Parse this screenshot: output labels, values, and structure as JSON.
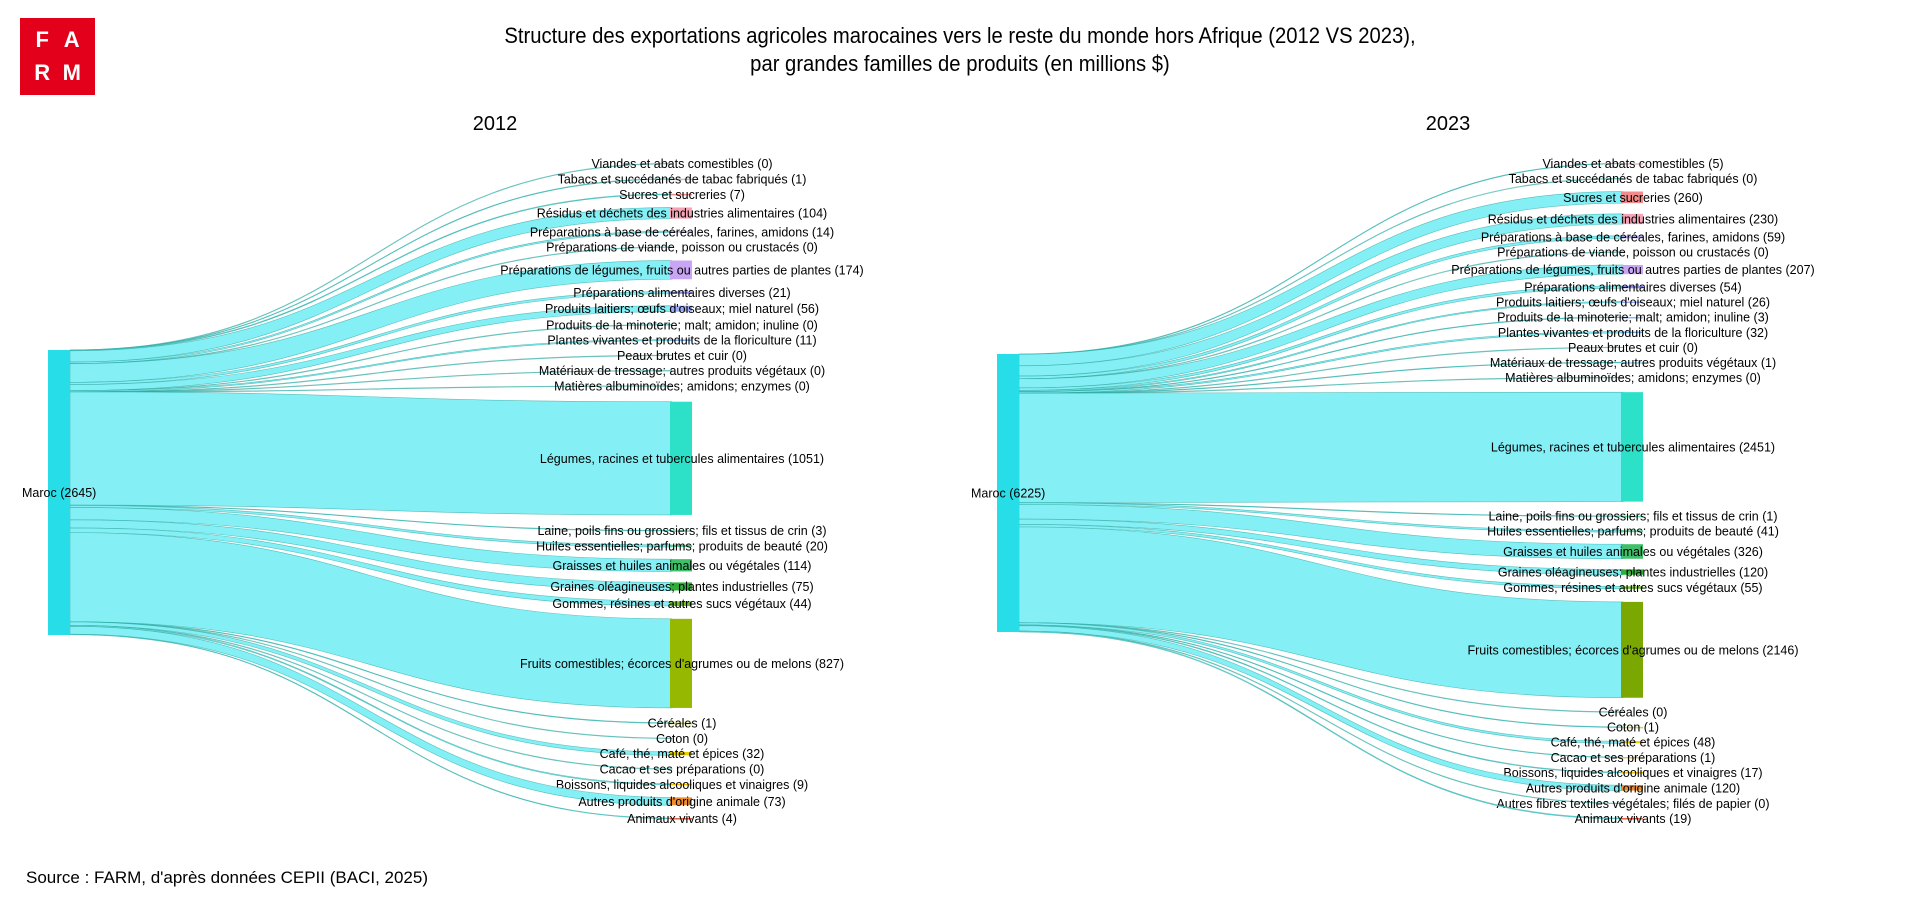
{
  "logo": {
    "letters": [
      "F",
      "A",
      "R",
      "M"
    ]
  },
  "title": {
    "line1": "Structure des exportations agricoles marocaines vers le reste du monde hors Afrique (2012 VS 2023),",
    "line2": "par grandes familles de produits (en millions $)"
  },
  "source": "Source : FARM, d'après données CEPII (BACI, 2025)",
  "colors": {
    "link": "#7eeef5",
    "link_edge": "#2aa8a0",
    "source_node": "#27dde8"
  },
  "chart_data": [
    {
      "type": "sankey",
      "title": "2012",
      "source_label": "Maroc (2645)",
      "source_value": 2645,
      "flows": [
        {
          "label": "Viandes et abats comestibles (0)",
          "value": 0,
          "color": "#bfbfbf"
        },
        {
          "label": "Tabacs et succédanés de tabac fabriqués (1)",
          "value": 1,
          "color": "#bfbfbf"
        },
        {
          "label": "Sucres et sucreries (7)",
          "value": 7,
          "color": "#f28b8b"
        },
        {
          "label": "Résidus et déchets des industries alimentaires (104)",
          "value": 104,
          "color": "#f5a3b5"
        },
        {
          "label": "Préparations à base de céréales, farines, amidons (14)",
          "value": 14,
          "color": "#b3a6f0"
        },
        {
          "label": "Préparations de viande, poisson ou crustacés (0)",
          "value": 0,
          "color": "#bfbfbf"
        },
        {
          "label": "Préparations de légumes, fruits ou autres parties de plantes (174)",
          "value": 174,
          "color": "#c9a6f5"
        },
        {
          "label": "Préparations alimentaires diverses (21)",
          "value": 21,
          "color": "#8a8af0"
        },
        {
          "label": "Produits laitiers; œufs d'oiseaux; miel naturel (56)",
          "value": 56,
          "color": "#9aaaf5"
        },
        {
          "label": "Produits de la minoterie; malt; amidon; inuline (0)",
          "value": 0,
          "color": "#bfbfbf"
        },
        {
          "label": "Plantes vivantes et produits de la floriculture (11)",
          "value": 11,
          "color": "#6fb0f0"
        },
        {
          "label": "Peaux brutes et cuir (0)",
          "value": 0,
          "color": "#bfbfbf"
        },
        {
          "label": "Matériaux de tressage; autres produits végétaux (0)",
          "value": 0,
          "color": "#bfbfbf"
        },
        {
          "label": "Matières albuminoïdes; amidons; enzymes (0)",
          "value": 0,
          "color": "#bfbfbf"
        },
        {
          "label": "Légumes, racines et tubercules alimentaires (1051)",
          "value": 1051,
          "color": "#2de0c8"
        },
        {
          "label": "Laine, poils fins ou grossiers; fils et tissus de crin (3)",
          "value": 3,
          "color": "#5fd9a8"
        },
        {
          "label": "Huiles essentielles; parfums; produits de beauté (20)",
          "value": 20,
          "color": "#4fd08c"
        },
        {
          "label": "Graisses et huiles animales ou végétales (114)",
          "value": 114,
          "color": "#3fbf6a"
        },
        {
          "label": "Graines oléagineuses; plantes industrielles (75)",
          "value": 75,
          "color": "#2fae3a"
        },
        {
          "label": "Gommes, résines et autres sucs végétaux (44)",
          "value": 44,
          "color": "#6cbf2a"
        },
        {
          "label": "Fruits comestibles; écorces d'agrumes ou de melons (827)",
          "value": 827,
          "color": "#96b800"
        },
        {
          "label": "Céréales (1)",
          "value": 1,
          "color": "#c8c800"
        },
        {
          "label": "Coton (0)",
          "value": 0,
          "color": "#bfbfbf"
        },
        {
          "label": "Café, thé, maté et épices (32)",
          "value": 32,
          "color": "#e6d000"
        },
        {
          "label": "Cacao et ses préparations (0)",
          "value": 0,
          "color": "#bfbfbf"
        },
        {
          "label": "Boissons, liquides alcooliques et vinaigres (9)",
          "value": 9,
          "color": "#f0c000"
        },
        {
          "label": "Autres produits d'origine animale (73)",
          "value": 73,
          "color": "#f08c2c"
        },
        {
          "label": "Animaux vivants (4)",
          "value": 4,
          "color": "#e85c40"
        }
      ]
    },
    {
      "type": "sankey",
      "title": "2023",
      "source_label": "Maroc (6225)",
      "source_value": 6225,
      "flows": [
        {
          "label": "Viandes et abats comestibles (5)",
          "value": 5,
          "color": "#e8c0c0"
        },
        {
          "label": "Tabacs et succédanés de tabac fabriqués (0)",
          "value": 0,
          "color": "#bfbfbf"
        },
        {
          "label": "Sucres et sucreries (260)",
          "value": 260,
          "color": "#f28b8b"
        },
        {
          "label": "Résidus et déchets des industries alimentaires (230)",
          "value": 230,
          "color": "#f5a3b5"
        },
        {
          "label": "Préparations à base de céréales, farines, amidons (59)",
          "value": 59,
          "color": "#b3a6f0"
        },
        {
          "label": "Préparations de viande, poisson ou crustacés (0)",
          "value": 0,
          "color": "#bfbfbf"
        },
        {
          "label": "Préparations de légumes, fruits ou autres parties de plantes (207)",
          "value": 207,
          "color": "#c9a6f5"
        },
        {
          "label": "Préparations alimentaires diverses (54)",
          "value": 54,
          "color": "#8a8af0"
        },
        {
          "label": "Produits laitiers; œufs d'oiseaux; miel naturel (26)",
          "value": 26,
          "color": "#9aaaf5"
        },
        {
          "label": "Produits de la minoterie; malt; amidon; inuline (3)",
          "value": 3,
          "color": "#8fb5f5"
        },
        {
          "label": "Plantes vivantes et produits de la floriculture (32)",
          "value": 32,
          "color": "#6fb0f0"
        },
        {
          "label": "Peaux brutes et cuir (0)",
          "value": 0,
          "color": "#bfbfbf"
        },
        {
          "label": "Matériaux de tressage; autres produits végétaux (1)",
          "value": 1,
          "color": "#8fd0f0"
        },
        {
          "label": "Matières albuminoïdes; amidons; enzymes (0)",
          "value": 0,
          "color": "#bfbfbf"
        },
        {
          "label": "Légumes, racines et tubercules alimentaires (2451)",
          "value": 2451,
          "color": "#2de0c8"
        },
        {
          "label": "Laine, poils fins ou grossiers; fils et tissus de crin (1)",
          "value": 1,
          "color": "#5fd9a8"
        },
        {
          "label": "Huiles essentielles; parfums; produits de beauté (41)",
          "value": 41,
          "color": "#4fd08c"
        },
        {
          "label": "Graisses et huiles animales ou végétales (326)",
          "value": 326,
          "color": "#3fbf6a"
        },
        {
          "label": "Graines oléagineuses; plantes industrielles (120)",
          "value": 120,
          "color": "#2fae3a"
        },
        {
          "label": "Gommes, résines et autres sucs végétaux (55)",
          "value": 55,
          "color": "#6cbf2a"
        },
        {
          "label": "Fruits comestibles; écorces d'agrumes ou de melons (2146)",
          "value": 2146,
          "color": "#7aa800"
        },
        {
          "label": "Céréales (0)",
          "value": 0,
          "color": "#bfbfbf"
        },
        {
          "label": "Coton (1)",
          "value": 1,
          "color": "#d0d060"
        },
        {
          "label": "Café, thé, maté et épices (48)",
          "value": 48,
          "color": "#e6d000"
        },
        {
          "label": "Cacao et ses préparations (1)",
          "value": 1,
          "color": "#e0c060"
        },
        {
          "label": "Boissons, liquides alcooliques et vinaigres (17)",
          "value": 17,
          "color": "#f0c000"
        },
        {
          "label": "Autres produits d'origine animale (120)",
          "value": 120,
          "color": "#f08c2c"
        },
        {
          "label": "Autres fibres textiles végétales; filés de papier (0)",
          "value": 0,
          "color": "#bfbfbf"
        },
        {
          "label": "Animaux vivants (19)",
          "value": 19,
          "color": "#e85c40"
        }
      ]
    }
  ]
}
